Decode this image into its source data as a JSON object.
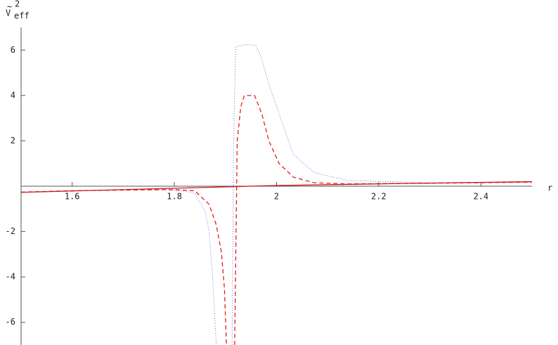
{
  "chart_data": {
    "type": "line",
    "y_label": {
      "symbol": "V",
      "accent": "~",
      "superscript": "2",
      "subscript": "eff"
    },
    "x_label": "r",
    "xlim": [
      1.5,
      2.5
    ],
    "ylim": [
      -7,
      7
    ],
    "xticks": [
      1.6,
      1.8,
      2,
      2.2,
      2.4
    ],
    "yticks": [
      -6,
      -4,
      -2,
      2,
      4,
      6
    ],
    "series": [
      {
        "color": "#5a6fd6",
        "style": "dotted",
        "x": [
          1.5,
          1.6,
          1.7,
          1.78,
          1.82,
          1.84,
          1.86,
          1.868,
          1.875,
          1.882,
          1.909,
          1.913,
          1.916,
          1.92,
          1.94,
          1.96,
          1.971,
          1.985,
          2.005,
          2.033,
          2.074,
          2.14,
          2.3,
          2.5
        ],
        "values": [
          -0.26,
          -0.2,
          -0.16,
          -0.15,
          -0.22,
          -0.3,
          -1.1,
          -2,
          -4,
          -7,
          null,
          -7,
          2,
          6.15,
          6.25,
          6.2,
          5.6,
          4.5,
          3.2,
          1.4,
          0.6,
          0.25,
          0.15,
          0.18
        ]
      },
      {
        "color": "#e02020",
        "style": "dashed",
        "x": [
          1.5,
          1.6,
          1.7,
          1.8,
          1.84,
          1.868,
          1.882,
          1.892,
          1.898,
          1.902,
          1.912,
          1.918,
          1.923,
          1.93,
          1.937,
          1.957,
          1.971,
          1.985,
          2.005,
          2.033,
          2.074,
          2.14,
          2.3,
          2.5
        ],
        "values": [
          -0.26,
          -0.2,
          -0.17,
          -0.15,
          -0.2,
          -0.8,
          -1.7,
          -2.9,
          -4.5,
          -7,
          null,
          -7,
          2,
          3.5,
          4,
          4,
          3.2,
          2,
          1,
          0.4,
          0.15,
          0.1,
          0.13,
          0.18
        ]
      },
      {
        "color": "#d01818",
        "style": "solid",
        "x": [
          1.5,
          1.75,
          2,
          2.25,
          2.5
        ],
        "values": [
          -0.27,
          -0.12,
          0.03,
          0.12,
          0.2
        ]
      }
    ]
  }
}
